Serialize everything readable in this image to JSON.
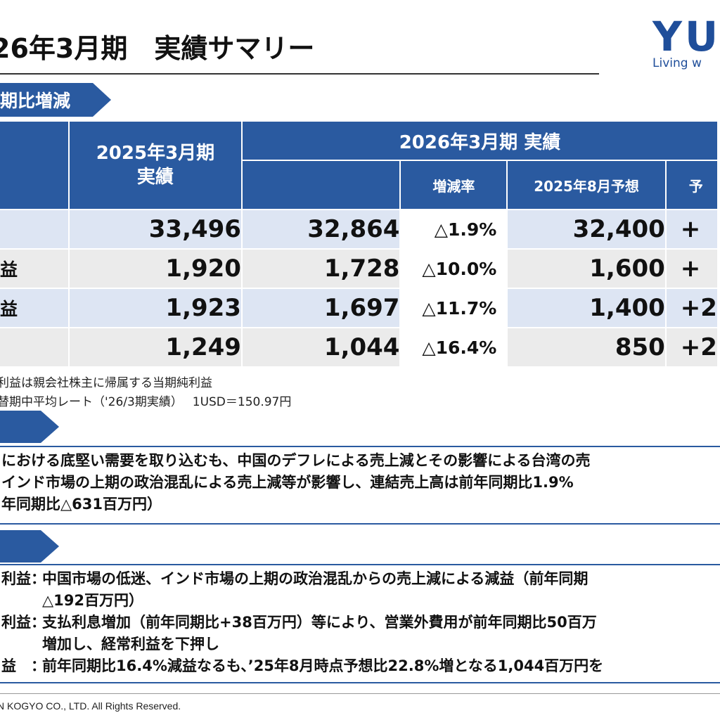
{
  "header": {
    "title": "26年3月期　実績サマリー",
    "logo_mark": "YU",
    "logo_tagline": "Living w"
  },
  "section1": {
    "label": "期比増減"
  },
  "table": {
    "col_2025": "2025年3月期\n実績",
    "col_2026_group": "2026年3月期 実績",
    "col_rate": "増減率",
    "col_forecast": "2025年8月予想",
    "col_cut": "予",
    "rows": [
      {
        "label": "",
        "v2025": "33,496",
        "v2026": "32,864",
        "rate": "△1.9%",
        "forecast": "32,400",
        "cut": "+"
      },
      {
        "label": "益",
        "v2025": "1,920",
        "v2026": "1,728",
        "rate": "△10.0%",
        "forecast": "1,600",
        "cut": "+"
      },
      {
        "label": "益",
        "v2025": "1,923",
        "v2026": "1,697",
        "rate": "△11.7%",
        "forecast": "1,400",
        "cut": "+2"
      },
      {
        "label": "",
        "v2025": "1,249",
        "v2026": "1,044",
        "rate": "△16.4%",
        "forecast": "850",
        "cut": "+2"
      }
    ]
  },
  "notes": {
    "note1": "利益は親会社株主に帰属する当期純利益",
    "note2": "替期中平均レート（'26/3期実績）　 1USD＝150.97円"
  },
  "sales": {
    "lines": [
      "における底堅い需要を取り込むも、中国のデフレによる売上減とその影響による台湾の売",
      "インド市場の上期の政治混乱による売上減等が影響し、連結売上高は前年同期比1.9%",
      "年同期比△631百万円）"
    ]
  },
  "profit": {
    "items": [
      {
        "key": "利益：",
        "text": "中国市場の低迷、インド市場の上期の政治混乱からの売上減による減益（前年同期",
        "cont": "△192百万円）"
      },
      {
        "key": "利益：",
        "text": "支払利息増加（前年同期比+38百万円）等により、営業外費用が前年同期比50百万",
        "cont": "増加し、経常利益を下押し"
      },
      {
        "key": "益　：",
        "text": "前年同期比16.4%減益なるも、’25年8月時点予想比22.8%増となる1,044百万円を",
        "cont": ""
      }
    ]
  },
  "footer": {
    "copyright": "N KOGYO CO., LTD. All Rights Reserved."
  },
  "colors": {
    "accent": "#2a5aa0",
    "row_blue": "#dde5f3",
    "row_gray": "#ebebeb"
  }
}
